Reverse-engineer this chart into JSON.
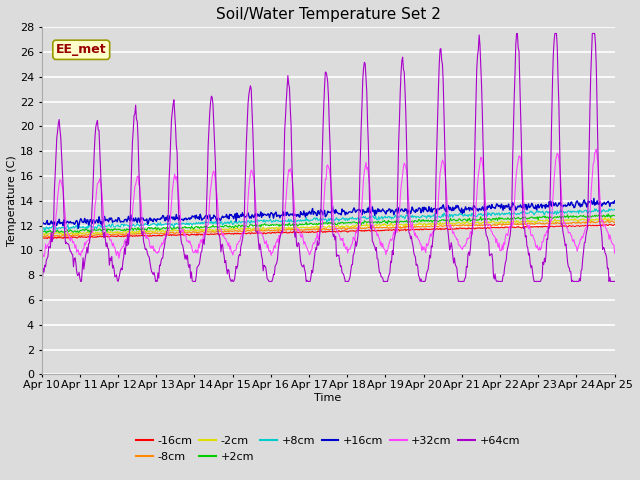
{
  "title": "Soil/Water Temperature Set 2",
  "xlabel": "Time",
  "ylabel": "Temperature (C)",
  "annotation": "EE_met",
  "ylim": [
    0,
    28
  ],
  "yticks": [
    0,
    2,
    4,
    6,
    8,
    10,
    12,
    14,
    16,
    18,
    20,
    22,
    24,
    26,
    28
  ],
  "date_labels": [
    "Apr 10",
    "Apr 11",
    "Apr 12",
    "Apr 13",
    "Apr 14",
    "Apr 15",
    "Apr 16",
    "Apr 17",
    "Apr 18",
    "Apr 19",
    "Apr 20",
    "Apr 21",
    "Apr 22",
    "Apr 23",
    "Apr 24",
    "Apr 25"
  ],
  "series_order": [
    "-16cm",
    "-8cm",
    "-2cm",
    "+2cm",
    "+8cm",
    "+16cm",
    "+32cm",
    "+64cm"
  ],
  "series": {
    "-16cm": {
      "color": "#ff0000",
      "linewidth": 0.8
    },
    "-8cm": {
      "color": "#ff8800",
      "linewidth": 0.8
    },
    "-2cm": {
      "color": "#dddd00",
      "linewidth": 0.8
    },
    "+2cm": {
      "color": "#00cc00",
      "linewidth": 0.8
    },
    "+8cm": {
      "color": "#00cccc",
      "linewidth": 0.8
    },
    "+16cm": {
      "color": "#0000cc",
      "linewidth": 1.0
    },
    "+32cm": {
      "color": "#ff44ff",
      "linewidth": 0.8
    },
    "+64cm": {
      "color": "#aa00cc",
      "linewidth": 0.8
    }
  },
  "plot_bg_color": "#dcdcdc",
  "fig_bg_color": "#dcdcdc",
  "grid_color": "#ffffff",
  "title_fontsize": 11,
  "axis_fontsize": 8,
  "legend_fontsize": 8,
  "legend_row1": [
    "-16cm",
    "-8cm",
    "-2cm",
    "+2cm",
    "+8cm",
    "+16cm"
  ],
  "legend_row2": [
    "+32cm",
    "+64cm"
  ]
}
